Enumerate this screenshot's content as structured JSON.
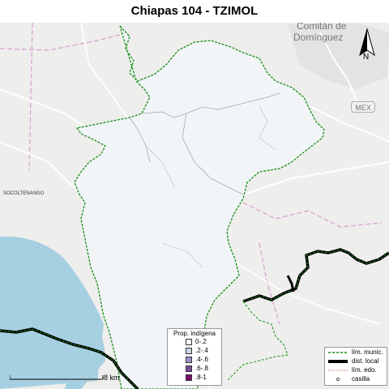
{
  "title": "Chiapas 104 - TZIMOL",
  "places": {
    "town_line1": "Comitán de",
    "town_line2": "Domínguez",
    "village": "SOCOLTENANGO",
    "road_badge": "MEX"
  },
  "north_label": "N",
  "legend_prop": {
    "title": "Prop. indígena",
    "items": [
      {
        "label": "0-.2",
        "color": "#ffffff"
      },
      {
        "label": ".2-.4",
        "color": "#c9d5ea"
      },
      {
        "label": ".4-.6",
        "color": "#9b91c9"
      },
      {
        "label": ".6-.8",
        "color": "#7c4a9b"
      },
      {
        "label": ".8-1",
        "color": "#7a0f6c"
      }
    ]
  },
  "legend_lines": {
    "items": [
      {
        "label": "lím. munic.",
        "type": "munic"
      },
      {
        "label": "dist. local",
        "type": "dist"
      },
      {
        "label": "lím. edo.",
        "type": "edo"
      },
      {
        "label": "casilla",
        "type": "casilla"
      }
    ]
  },
  "scale_label": "8 km",
  "colors": {
    "water": "#a6cfe1",
    "land": "#eeeeec",
    "municipality_fill": "#f1f5f8",
    "municipal_border": "#1a8f1a",
    "district_border": "#000000",
    "roads": "#ffffff",
    "state_boundary": "#d79fd0"
  }
}
